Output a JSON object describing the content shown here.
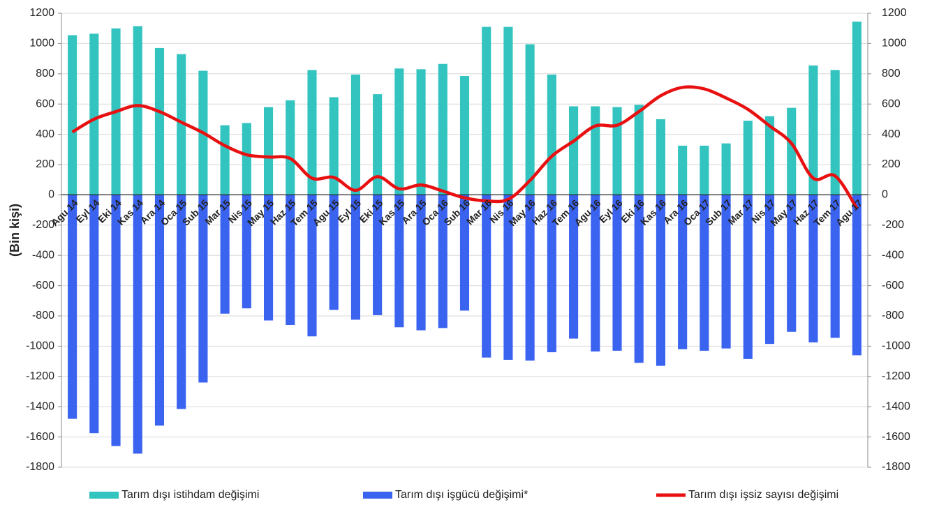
{
  "chart_data": {
    "type": "bar",
    "y_label": "(Bin kişi)",
    "categories": [
      "Agu 14",
      "Eyl 14",
      "Eki 14",
      "Kas 14",
      "Ara 14",
      "Oca 15",
      "Sub 15",
      "Mar 15",
      "Nis 15",
      "May 15",
      "Haz 15",
      "Tem 15",
      "Agu 15",
      "Eyl 15",
      "Eki 15",
      "Kas 15",
      "Ara 15",
      "Oca 16",
      "Sub 16",
      "Mar 16",
      "Nis 16",
      "May 16",
      "Haz 16",
      "Tem 16",
      "Agu 16",
      "Eyl 16",
      "Eki 16",
      "Kas 16",
      "Ara 16",
      "Oca 17",
      "Sub 17",
      "Mar 17",
      "Nis 17",
      "May 17",
      "Haz 17",
      "Tem 17",
      "Agu 17"
    ],
    "series": [
      {
        "name": "Tarım dışı istihdam değişimi",
        "color": "#33c4c0",
        "kind": "bar",
        "values": [
          1055,
          1065,
          1100,
          1115,
          970,
          930,
          820,
          460,
          475,
          580,
          625,
          825,
          645,
          795,
          665,
          835,
          830,
          865,
          785,
          1110,
          1110,
          995,
          795,
          585,
          585,
          580,
          595,
          500,
          325,
          325,
          340,
          490,
          520,
          575,
          855,
          825,
          1145
        ]
      },
      {
        "name": "Tarım dışı işgücü değişimi*",
        "color": "#3a63f0",
        "kind": "bar",
        "values": [
          -1480,
          -1575,
          -1660,
          -1710,
          -1525,
          -1415,
          -1240,
          -785,
          -750,
          -830,
          -860,
          -935,
          -760,
          -825,
          -795,
          -875,
          -895,
          -880,
          -765,
          -1075,
          -1090,
          -1095,
          -1040,
          -950,
          -1035,
          -1030,
          -1110,
          -1130,
          -1020,
          -1030,
          -1015,
          -1085,
          -985,
          -905,
          -975,
          -945,
          -1060
        ]
      },
      {
        "name": "Tarım dışı işsiz sayısı değişimi",
        "color": "#e81010",
        "kind": "line",
        "values": [
          415,
          500,
          550,
          590,
          550,
          480,
          410,
          325,
          265,
          250,
          240,
          110,
          115,
          30,
          120,
          40,
          65,
          25,
          -20,
          -40,
          -30,
          95,
          255,
          355,
          455,
          460,
          550,
          655,
          710,
          700,
          640,
          565,
          455,
          340,
          110,
          125,
          -90
        ]
      }
    ],
    "ylim": [
      -1800,
      1200
    ],
    "yticks": [
      -1800,
      -1600,
      -1400,
      -1200,
      -1000,
      -800,
      -600,
      -400,
      -200,
      0,
      200,
      400,
      600,
      800,
      1000,
      1200
    ],
    "y2lim": [
      -1800,
      1200
    ],
    "y2ticks": [
      -1800,
      -1600,
      -1400,
      -1200,
      -1000,
      -800,
      -600,
      -400,
      -200,
      0,
      200,
      400,
      600,
      800,
      1000,
      1200
    ],
    "grid": true
  }
}
